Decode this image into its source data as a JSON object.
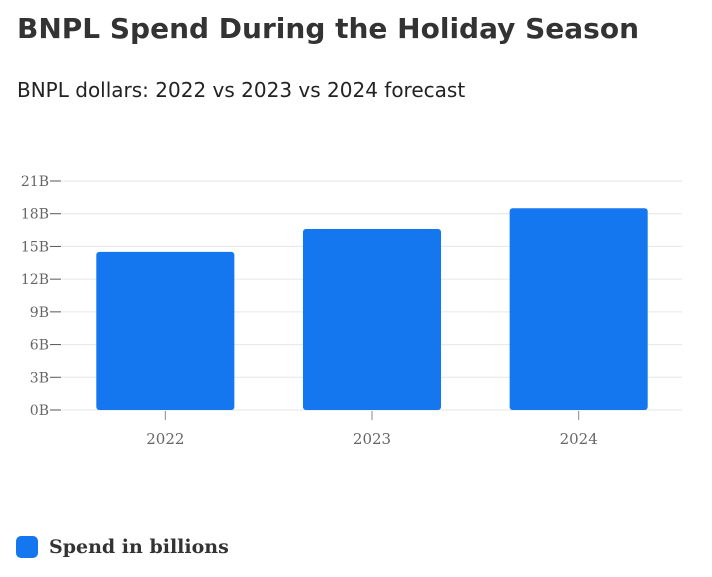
{
  "title": "BNPL Spend During the Holiday Season",
  "subtitle": "BNPL dollars: 2022 vs 2023 vs 2024 forecast",
  "chart_data": {
    "type": "bar",
    "title": "BNPL Spend During the Holiday Season",
    "subtitle": "BNPL dollars: 2022 vs 2023 vs 2024 forecast",
    "categories": [
      "2022",
      "2023",
      "2024"
    ],
    "series": [
      {
        "name": "Spend in billions",
        "values": [
          14.5,
          16.6,
          18.5
        ],
        "color": "#1577EF"
      }
    ],
    "y_ticks": [
      0,
      3,
      6,
      9,
      12,
      15,
      18,
      21
    ],
    "y_tick_labels": [
      "0B",
      "3B",
      "6B",
      "9B",
      "12B",
      "15B",
      "18B",
      "21B"
    ],
    "ylim": [
      0,
      21
    ],
    "xlabel": "",
    "ylabel": "",
    "grid": true,
    "legend_position": "bottom-left"
  },
  "legend": {
    "label": "Spend in billions",
    "color": "#1577EF"
  },
  "colors": {
    "bar": "#1577EF",
    "grid": "#e6e6e6",
    "axis_text": "#666666"
  }
}
